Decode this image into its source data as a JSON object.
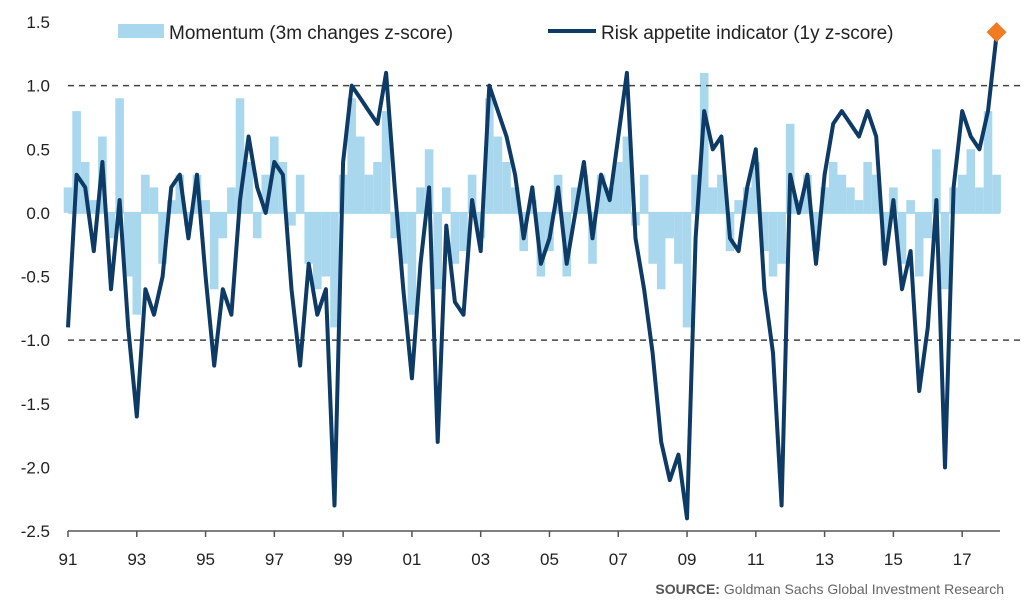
{
  "chart_data": {
    "type": "area",
    "title": "",
    "xlabel": "",
    "ylabel": "",
    "ylim": [
      -2.5,
      1.5
    ],
    "xlim": [
      1991,
      2018.1
    ],
    "yticks": [
      "1.5",
      "1.0",
      "0.5",
      "0.0",
      "-0.5",
      "-1.0",
      "-1.5",
      "-2.0",
      "-2.5"
    ],
    "yticks_values": [
      1.5,
      1.0,
      0.5,
      0.0,
      -0.5,
      -1.0,
      -1.5,
      -2.0,
      -2.5
    ],
    "xticks": [
      "91",
      "93",
      "95",
      "97",
      "99",
      "01",
      "03",
      "05",
      "07",
      "09",
      "11",
      "13",
      "15",
      "17"
    ],
    "xticks_values": [
      1991,
      1993,
      1995,
      1997,
      1999,
      2001,
      2003,
      2005,
      2007,
      2009,
      2011,
      2013,
      2015,
      2017
    ],
    "reference_lines": [
      1.0,
      -1.0
    ],
    "grid": false,
    "legend_position": "top",
    "colors": {
      "momentum": "#a9d8ee",
      "risk": "#0e3a66",
      "marker": "#f07b22",
      "refline": "#444444",
      "zero": "#a9d8ee"
    },
    "series": [
      {
        "name": "Momentum (3m changes z-score)",
        "kind": "area",
        "x": [
          1991.0,
          1991.25,
          1991.5,
          1991.75,
          1992.0,
          1992.25,
          1992.5,
          1992.75,
          1993.0,
          1993.25,
          1993.5,
          1993.75,
          1994.0,
          1994.25,
          1994.5,
          1994.75,
          1995.0,
          1995.25,
          1995.5,
          1995.75,
          1996.0,
          1996.25,
          1996.5,
          1996.75,
          1997.0,
          1997.25,
          1997.5,
          1997.75,
          1998.0,
          1998.25,
          1998.5,
          1998.75,
          1999.0,
          1999.25,
          1999.5,
          1999.75,
          2000.0,
          2000.25,
          2000.5,
          2000.75,
          2001.0,
          2001.25,
          2001.5,
          2001.75,
          2002.0,
          2002.25,
          2002.5,
          2002.75,
          2003.0,
          2003.25,
          2003.5,
          2003.75,
          2004.0,
          2004.25,
          2004.5,
          2004.75,
          2005.0,
          2005.25,
          2005.5,
          2005.75,
          2006.0,
          2006.25,
          2006.5,
          2006.75,
          2007.0,
          2007.25,
          2007.5,
          2007.75,
          2008.0,
          2008.25,
          2008.5,
          2008.75,
          2009.0,
          2009.25,
          2009.5,
          2009.75,
          2010.0,
          2010.25,
          2010.5,
          2010.75,
          2011.0,
          2011.25,
          2011.5,
          2011.75,
          2012.0,
          2012.25,
          2012.5,
          2012.75,
          2013.0,
          2013.25,
          2013.5,
          2013.75,
          2014.0,
          2014.25,
          2014.5,
          2014.75,
          2015.0,
          2015.25,
          2015.5,
          2015.75,
          2016.0,
          2016.25,
          2016.5,
          2016.75,
          2017.0,
          2017.25,
          2017.5,
          2017.75,
          2018.0
        ],
        "values": [
          0.2,
          0.8,
          0.4,
          0.1,
          0.6,
          -0.2,
          0.9,
          -0.5,
          -0.8,
          0.3,
          0.2,
          -0.4,
          0.1,
          0.3,
          -0.1,
          0.3,
          0.1,
          -0.6,
          -0.2,
          0.2,
          0.9,
          0.4,
          -0.2,
          0.3,
          0.6,
          0.4,
          -0.1,
          0.3,
          -0.4,
          -0.6,
          -0.5,
          -0.9,
          0.3,
          0.9,
          0.6,
          0.3,
          0.4,
          0.8,
          -0.2,
          -0.4,
          -0.8,
          0.2,
          0.5,
          -0.6,
          0.2,
          -0.4,
          -0.3,
          0.3,
          -0.2,
          0.9,
          0.6,
          0.4,
          0.2,
          -0.3,
          0.1,
          -0.5,
          -0.3,
          0.3,
          -0.5,
          0.2,
          0.3,
          -0.4,
          0.3,
          0.2,
          0.4,
          0.6,
          -0.1,
          0.3,
          -0.4,
          -0.6,
          -0.2,
          -0.4,
          -0.9,
          0.3,
          1.1,
          0.2,
          0.3,
          -0.3,
          0.1,
          0.2,
          0.4,
          -0.3,
          -0.5,
          -0.4,
          0.7,
          0.1,
          0.3,
          -0.3,
          0.2,
          0.4,
          0.3,
          0.2,
          0.1,
          0.4,
          0.3,
          -0.3,
          0.2,
          -0.4,
          0.1,
          -0.5,
          -0.2,
          0.5,
          -0.6,
          0.2,
          0.3,
          0.5,
          0.2,
          0.8,
          0.3
        ]
      },
      {
        "name": "Risk appetite indicator (1y z-score)",
        "kind": "line",
        "x": [
          1991.0,
          1991.25,
          1991.5,
          1991.75,
          1992.0,
          1992.25,
          1992.5,
          1992.75,
          1993.0,
          1993.25,
          1993.5,
          1993.75,
          1994.0,
          1994.25,
          1994.5,
          1994.75,
          1995.0,
          1995.25,
          1995.5,
          1995.75,
          1996.0,
          1996.25,
          1996.5,
          1996.75,
          1997.0,
          1997.25,
          1997.5,
          1997.75,
          1998.0,
          1998.25,
          1998.5,
          1998.75,
          1999.0,
          1999.25,
          1999.5,
          1999.75,
          2000.0,
          2000.25,
          2000.5,
          2000.75,
          2001.0,
          2001.25,
          2001.5,
          2001.75,
          2002.0,
          2002.25,
          2002.5,
          2002.75,
          2003.0,
          2003.25,
          2003.5,
          2003.75,
          2004.0,
          2004.25,
          2004.5,
          2004.75,
          2005.0,
          2005.25,
          2005.5,
          2005.75,
          2006.0,
          2006.25,
          2006.5,
          2006.75,
          2007.0,
          2007.25,
          2007.5,
          2007.75,
          2008.0,
          2008.25,
          2008.5,
          2008.75,
          2009.0,
          2009.25,
          2009.5,
          2009.75,
          2010.0,
          2010.25,
          2010.5,
          2010.75,
          2011.0,
          2011.25,
          2011.5,
          2011.75,
          2012.0,
          2012.25,
          2012.5,
          2012.75,
          2013.0,
          2013.25,
          2013.5,
          2013.75,
          2014.0,
          2014.25,
          2014.5,
          2014.75,
          2015.0,
          2015.25,
          2015.5,
          2015.75,
          2016.0,
          2016.25,
          2016.5,
          2016.75,
          2017.0,
          2017.25,
          2017.5,
          2017.75,
          2018.0
        ],
        "values": [
          -0.9,
          0.3,
          0.2,
          -0.3,
          0.4,
          -0.6,
          0.1,
          -0.9,
          -1.6,
          -0.6,
          -0.8,
          -0.5,
          0.2,
          0.3,
          -0.2,
          0.3,
          -0.5,
          -1.2,
          -0.6,
          -0.8,
          0.1,
          0.6,
          0.2,
          0.0,
          0.4,
          0.3,
          -0.6,
          -1.2,
          -0.4,
          -0.8,
          -0.6,
          -2.3,
          0.4,
          1.0,
          0.9,
          0.8,
          0.7,
          1.1,
          0.2,
          -0.6,
          -1.3,
          -0.4,
          0.2,
          -1.8,
          -0.1,
          -0.7,
          -0.8,
          0.1,
          -0.3,
          1.0,
          0.8,
          0.6,
          0.3,
          -0.2,
          0.2,
          -0.4,
          -0.2,
          0.2,
          -0.4,
          0.0,
          0.4,
          -0.2,
          0.3,
          0.1,
          0.6,
          1.1,
          -0.2,
          -0.6,
          -1.1,
          -1.8,
          -2.1,
          -1.9,
          -2.4,
          -0.2,
          0.8,
          0.5,
          0.6,
          -0.2,
          -0.3,
          0.2,
          0.5,
          -0.6,
          -1.1,
          -2.3,
          0.3,
          0.0,
          0.3,
          -0.4,
          0.3,
          0.7,
          0.8,
          0.7,
          0.6,
          0.8,
          0.6,
          -0.4,
          0.1,
          -0.6,
          -0.3,
          -1.4,
          -0.9,
          0.1,
          -2.0,
          0.2,
          0.8,
          0.6,
          0.5,
          0.8,
          1.4
        ]
      }
    ],
    "end_marker": {
      "x": 2018.0,
      "y": 1.42
    }
  },
  "source": {
    "prefix": "SOURCE:",
    "text": " Goldman Sachs Global Investment Research"
  }
}
